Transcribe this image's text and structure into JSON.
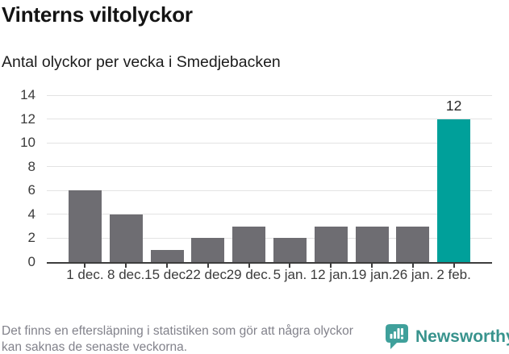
{
  "header": {
    "title": "Vinterns viltolyckor",
    "subtitle": "Antal olyckor per vecka i Smedjebacken"
  },
  "chart_data": {
    "type": "bar",
    "title": "Vinterns viltolyckor",
    "subtitle": "Antal olyckor per vecka i Smedjebacken",
    "categories": [
      "1 dec.",
      "8 dec.",
      "15 dec.",
      "22 dec.",
      "29 dec.",
      "5 jan.",
      "12 jan.",
      "19 jan.",
      "26 jan.",
      "2 feb."
    ],
    "values": [
      6,
      4,
      1,
      2,
      3,
      2,
      3,
      3,
      3,
      12
    ],
    "highlight_index": 9,
    "value_label": "12",
    "xlabel": "",
    "ylabel": "",
    "ylim": [
      0,
      14
    ],
    "ytick_step": 2,
    "grid": "horizontal",
    "legend": "none",
    "colors": {
      "bar": "#6e6d72",
      "highlight": "#00a09a",
      "grid": "#e3e3e3",
      "axis": "#3d3d3d",
      "tick_label": "#3b3b3b"
    }
  },
  "footer": {
    "note": "Det finns en eftersläpning i statistiken som gör att några olyckor kan saknas de senaste veckorna.",
    "brand": "Newsworthy",
    "brand_text_color": "#38938d",
    "brand_icon_color": "#3fa09b"
  }
}
